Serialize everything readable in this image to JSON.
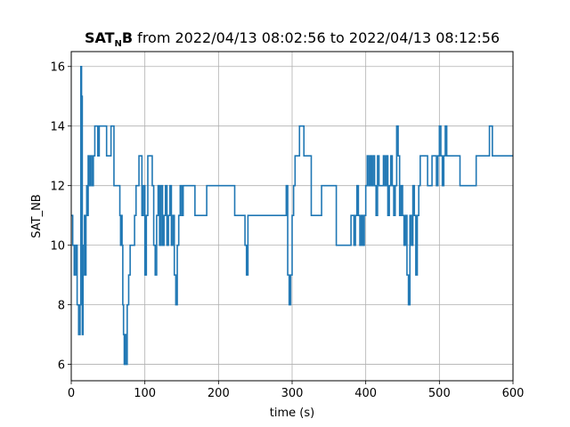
{
  "chart_data": {
    "type": "line",
    "title": {
      "bold_main": "SAT",
      "bold_sub": "N",
      "bold_tail": "B",
      "rest": " from 2022/04/13 08:02:56 to 2022/04/13 08:12:56"
    },
    "xlabel": "time (s)",
    "ylabel": "SAT_NB",
    "xlim": [
      0,
      600
    ],
    "ylim": [
      5.45,
      16.5
    ],
    "xticks": [
      0,
      100,
      200,
      300,
      400,
      500,
      600
    ],
    "yticks": [
      6,
      8,
      10,
      12,
      14,
      16
    ],
    "grid": true,
    "line_color": "#1f77b4",
    "series": [
      {
        "x": [
          0,
          2,
          4,
          6,
          8,
          10,
          12,
          13,
          14,
          15,
          16,
          17,
          18,
          19,
          20,
          21,
          22,
          23,
          24,
          26,
          28,
          30,
          32,
          34,
          36,
          38,
          42,
          48,
          54,
          58,
          66,
          67,
          68,
          69,
          70,
          71,
          72,
          73,
          74,
          76,
          78,
          80,
          82,
          84,
          86,
          88,
          92,
          96,
          98,
          100,
          102,
          104,
          110,
          112,
          114,
          116,
          118,
          120,
          122,
          124,
          126,
          128,
          130,
          132,
          134,
          136,
          138,
          140,
          142,
          144,
          146,
          148,
          150,
          152,
          154,
          156,
          158,
          160,
          162,
          164,
          166,
          168,
          170,
          176,
          180,
          184,
          200,
          210,
          218,
          222,
          232,
          236,
          238,
          240,
          242,
          250,
          260,
          280,
          288,
          290,
          292,
          294,
          296,
          298,
          300,
          302,
          304,
          310,
          316,
          318,
          320,
          322,
          324,
          326,
          340,
          360,
          380,
          384,
          386,
          388,
          390,
          392,
          394,
          396,
          398,
          400,
          402,
          404,
          406,
          408,
          410,
          412,
          414,
          416,
          418,
          420,
          422,
          424,
          426,
          428,
          430,
          432,
          434,
          436,
          438,
          440,
          442,
          444,
          446,
          448,
          450,
          452,
          454,
          456,
          458,
          460,
          462,
          464,
          466,
          468,
          470,
          472,
          474,
          476,
          478,
          480,
          482,
          484,
          486,
          488,
          490,
          492,
          494,
          496,
          498,
          500,
          502,
          504,
          506,
          508,
          510,
          512,
          514,
          516,
          518,
          520,
          522,
          524,
          526,
          528,
          530,
          540,
          550,
          560,
          564,
          568,
          572,
          576,
          580,
          584,
          588,
          592,
          596,
          598,
          600
        ],
        "values": [
          11,
          10,
          9,
          10,
          8,
          7,
          8,
          16,
          15,
          7,
          9,
          10,
          11,
          9,
          11,
          12,
          11,
          13,
          12,
          13,
          12,
          13,
          14,
          14,
          13,
          14,
          14,
          13,
          14,
          12,
          11,
          10,
          11,
          10,
          8,
          7,
          6,
          7,
          6,
          8,
          9,
          10,
          10,
          10,
          11,
          12,
          13,
          11,
          12,
          9,
          11,
          13,
          12,
          10,
          9,
          11,
          12,
          10,
          12,
          10,
          11,
          12,
          10,
          11,
          12,
          10,
          11,
          9,
          8,
          10,
          11,
          12,
          11,
          12,
          12,
          12,
          12,
          12,
          12,
          12,
          12,
          11,
          11,
          11,
          11,
          12,
          12,
          12,
          12,
          11,
          11,
          10,
          9,
          11,
          11,
          11,
          11,
          11,
          11,
          11,
          12,
          9,
          8,
          9,
          11,
          12,
          13,
          14,
          13,
          13,
          13,
          13,
          13,
          11,
          12,
          10,
          11,
          10,
          11,
          12,
          11,
          10,
          11,
          10,
          11,
          12,
          13,
          12,
          13,
          12,
          13,
          12,
          11,
          13,
          12,
          12,
          12,
          13,
          12,
          13,
          11,
          12,
          13,
          12,
          11,
          12,
          14,
          13,
          11,
          12,
          11,
          10,
          11,
          9,
          8,
          11,
          10,
          12,
          11,
          9,
          11,
          12,
          13,
          13,
          13,
          13,
          13,
          12,
          12,
          12,
          13,
          13,
          13,
          12,
          13,
          14,
          13,
          12,
          13,
          14,
          13,
          13,
          13,
          13,
          13,
          13,
          13,
          13,
          13,
          12,
          12,
          12,
          13,
          13,
          13,
          14,
          13,
          13,
          13,
          13,
          13,
          13,
          13,
          13,
          13
        ]
      }
    ]
  }
}
